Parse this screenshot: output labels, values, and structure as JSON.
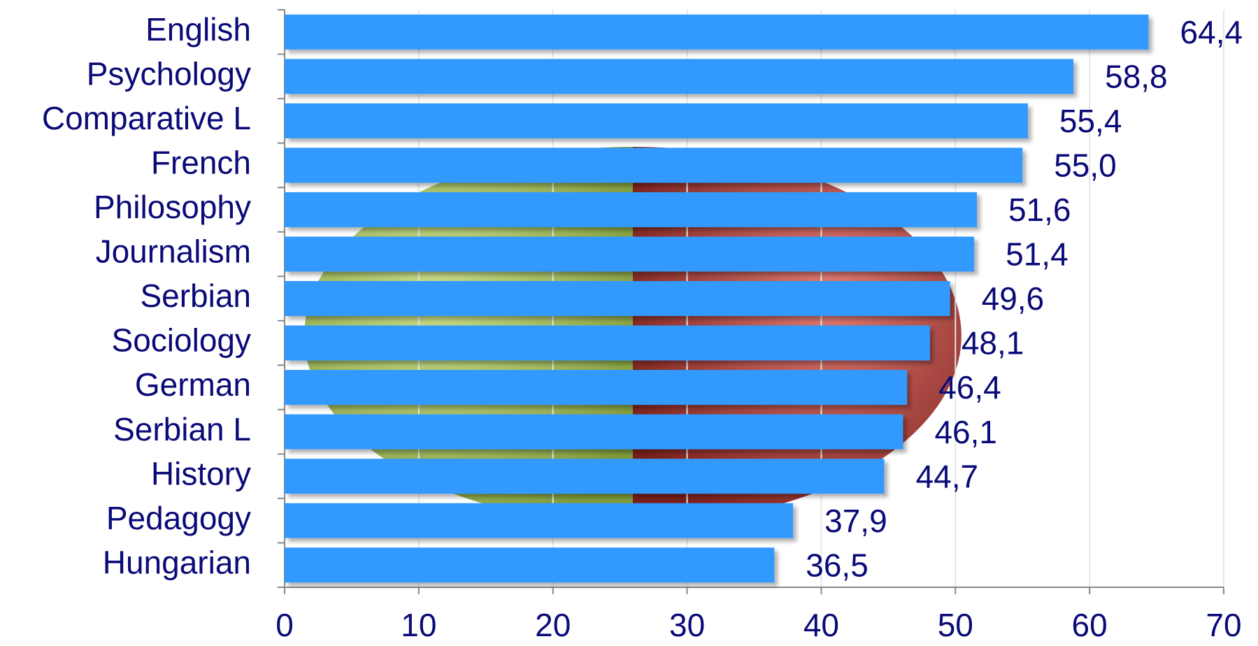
{
  "chart_data": {
    "type": "bar",
    "orientation": "horizontal",
    "categories": [
      "English",
      "Psychology",
      "Comparative L",
      "French",
      "Philosophy",
      "Journalism",
      "Serbian",
      "Sociology",
      "German",
      "Serbian L",
      "History",
      "Pedagogy",
      "Hungarian"
    ],
    "values": [
      64.4,
      58.8,
      55.4,
      55.0,
      51.6,
      51.4,
      49.6,
      48.1,
      46.4,
      46.1,
      44.7,
      37.9,
      36.5
    ],
    "value_labels": [
      "64,4",
      "58,8",
      "55,4",
      "55,0",
      "51,6",
      "51,4",
      "49,6",
      "48,1",
      "46,4",
      "46,1",
      "44,7",
      "37,9",
      "36,5"
    ],
    "color": "#3399ff",
    "xlim": [
      0,
      70
    ],
    "xticks": [
      0,
      10,
      20,
      30,
      40,
      50,
      60,
      70
    ],
    "grid": true
  }
}
